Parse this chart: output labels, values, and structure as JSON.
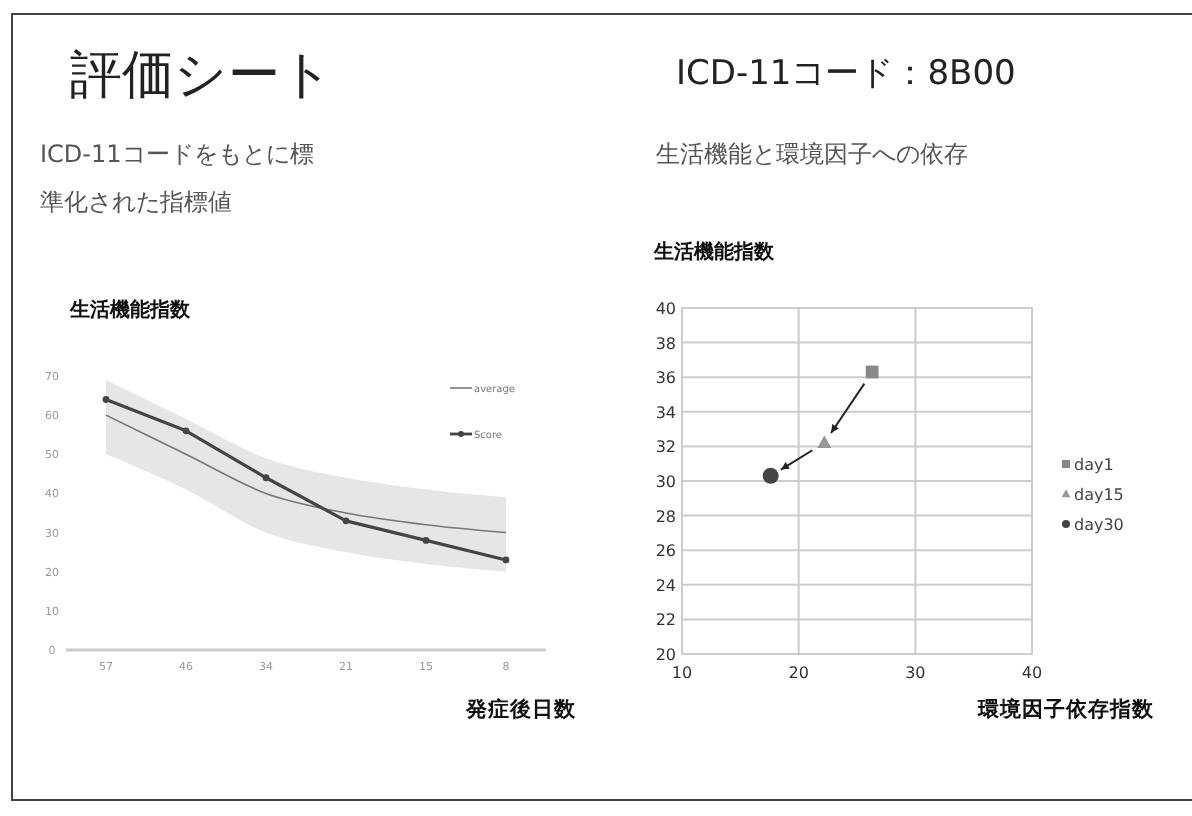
{
  "chart_data": [
    {
      "type": "line",
      "title": "評価シート",
      "subtitle": "ICD-11コードをもとに標準化された指標値",
      "ylabel": "生活機能指数",
      "xlabel": "発症後日数",
      "categories": [
        "57",
        "46",
        "34",
        "21",
        "15",
        "8"
      ],
      "series": [
        {
          "name": "average",
          "color": "#777777",
          "marker": "none",
          "values": [
            60,
            50,
            40,
            35,
            32,
            30
          ],
          "lower": [
            50,
            41,
            30,
            25,
            22,
            20
          ],
          "upper": [
            69,
            59,
            49,
            44,
            41,
            39
          ]
        },
        {
          "name": "Score",
          "color": "#444444",
          "marker": "circle",
          "values": [
            64,
            56,
            44,
            33,
            28,
            23
          ]
        }
      ],
      "ylim": [
        0,
        70
      ],
      "yticks": [
        0,
        10,
        20,
        30,
        40,
        50,
        60,
        70
      ],
      "legend": "top right"
    },
    {
      "type": "scatter",
      "title": "ICD-11コード：8B00",
      "subtitle": "生活機能と環境因子への依存",
      "ylabel": "生活機能指数",
      "xlabel": "環境因子依存指数",
      "series": [
        {
          "name": "day1",
          "color": "#888888",
          "marker": "square",
          "x": [
            26.3
          ],
          "values": [
            36.3
          ]
        },
        {
          "name": "day15",
          "color": "#999999",
          "marker": "triangle",
          "x": [
            22.2
          ],
          "values": [
            32.2
          ]
        },
        {
          "name": "day30",
          "color": "#444444",
          "marker": "circle",
          "x": [
            17.6
          ],
          "values": [
            30.3
          ]
        }
      ],
      "xlim": [
        10,
        40
      ],
      "xticks": [
        10,
        20,
        30,
        40
      ],
      "ylim": [
        20,
        40
      ],
      "yticks": [
        20,
        22,
        24,
        26,
        28,
        30,
        32,
        34,
        36,
        38,
        40
      ],
      "grid": true,
      "legend": "right"
    }
  ]
}
